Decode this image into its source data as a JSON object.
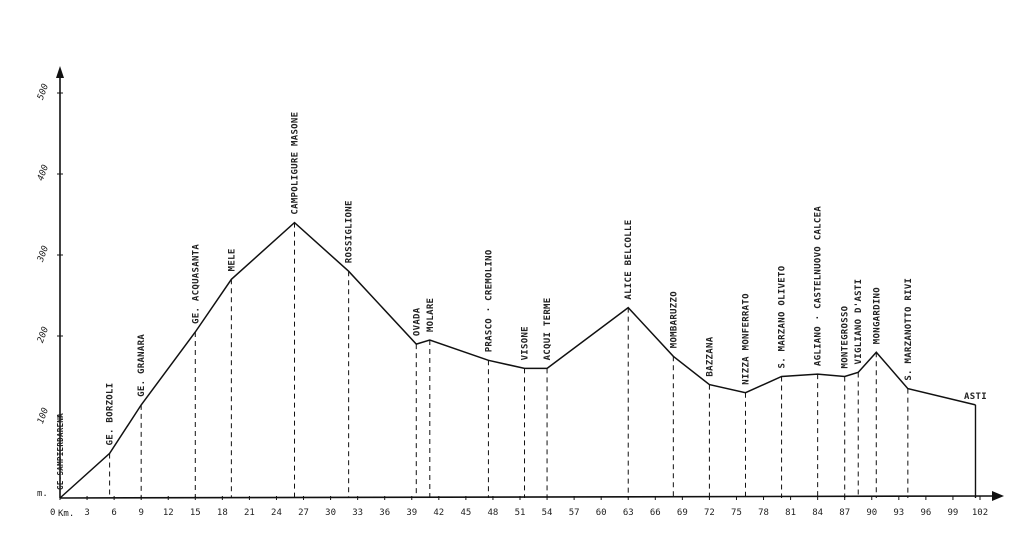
{
  "chart_data": {
    "type": "line",
    "title": "",
    "xlabel": "Km.",
    "ylabel": "m.",
    "xlim": [
      0,
      103
    ],
    "ylim": [
      0,
      520
    ],
    "x_ticks": [
      "0",
      "3",
      "6",
      "9",
      "12",
      "15",
      "18",
      "21",
      "24",
      "27",
      "30",
      "33",
      "36",
      "39",
      "42",
      "45",
      "48",
      "51",
      "54",
      "57",
      "60",
      "63",
      "66",
      "69",
      "72",
      "75",
      "78",
      "81",
      "84",
      "87",
      "90",
      "93",
      "96",
      "99",
      "102"
    ],
    "y_ticks": [
      "100",
      "200",
      "300",
      "400",
      "500"
    ],
    "x_values": [
      0,
      5.5,
      9,
      15,
      19,
      26,
      32,
      39.5,
      41,
      47.5,
      51.5,
      54,
      63,
      68,
      72,
      76,
      80,
      84,
      87,
      88.5,
      90.5,
      94,
      101.5
    ],
    "y_values": [
      0,
      55,
      115,
      205,
      270,
      340,
      280,
      190,
      195,
      170,
      160,
      160,
      235,
      175,
      140,
      130,
      150,
      153,
      150,
      155,
      180,
      135,
      115
    ],
    "labels": [
      "GE·SAMPIERDARENA",
      "GE. BORZOLI",
      "GE. GRANARA",
      "GE. ACQUASANTA",
      "MELE",
      "CAMPOLIGURE MASONE",
      "ROSSIGLIONE",
      "OVADA",
      "MOLARE",
      "PRASCO · CREMOLINO",
      "VISONE",
      "ACQUI TERME",
      "ALICE BELCOLLE",
      "MOMBARUZZO",
      "BAZZANA",
      "NIZZA MONFERRATO",
      "S. MARZANO OLIVETO",
      "AGLIANO · CASTELNUOVO CALCEA",
      "MONTEGROSSO",
      "VIGLIANO D'ASTI",
      "MONGARDINO",
      "S. MARZANOTTO RIVI",
      "ASTI"
    ]
  }
}
